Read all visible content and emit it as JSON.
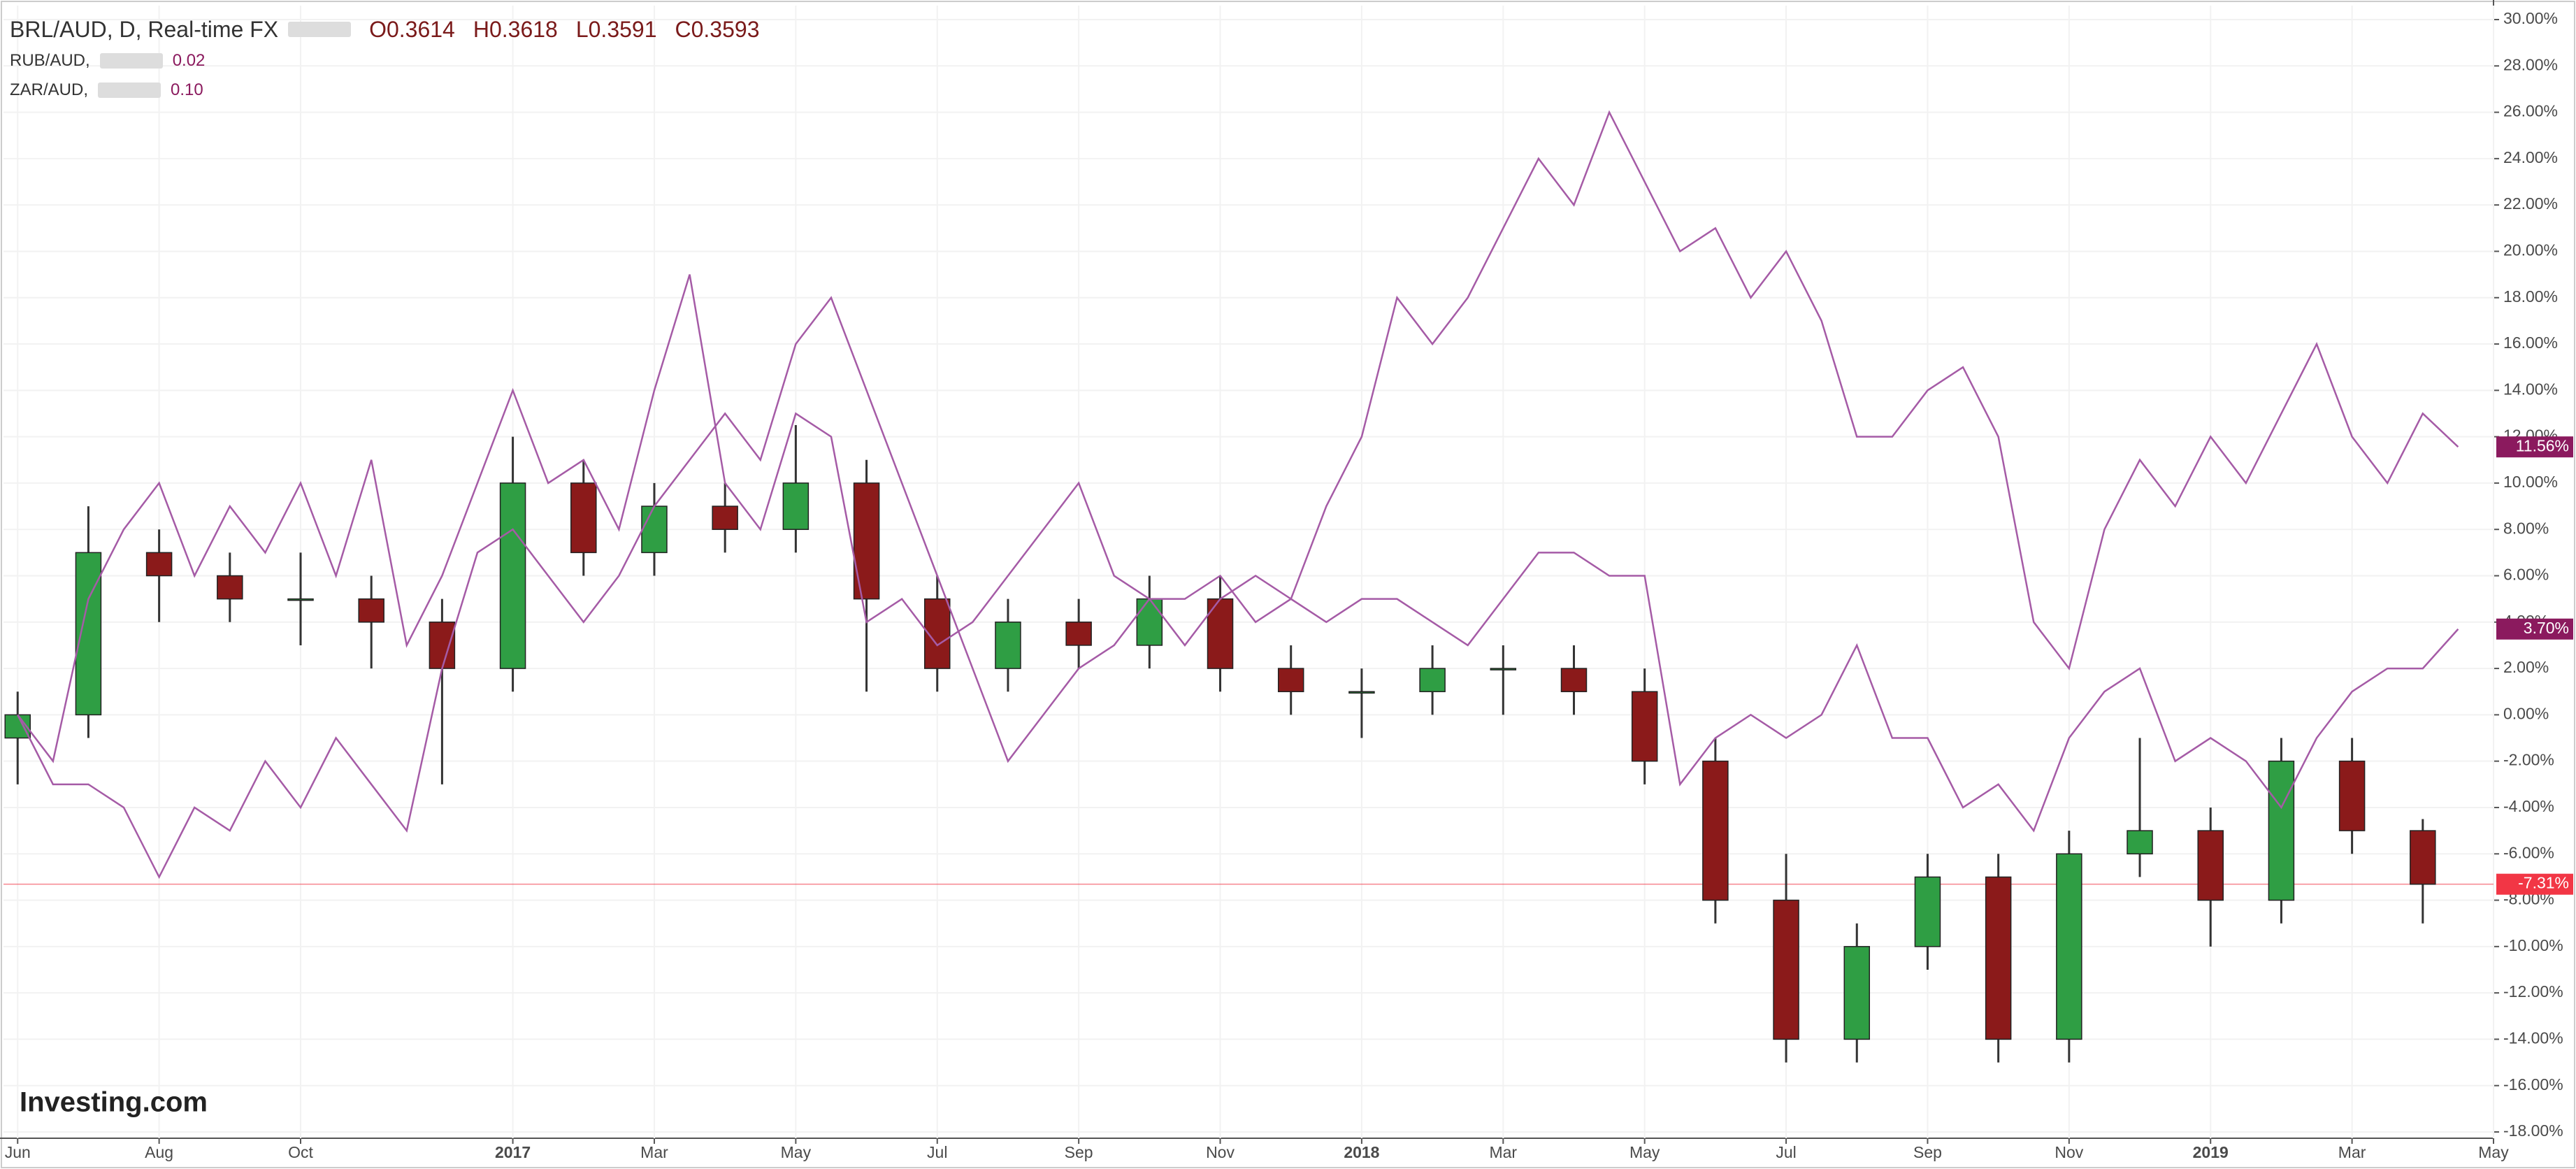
{
  "chart_data": {
    "type": "candlestick",
    "title": "BRL/AUD, D, Real-time FX",
    "ohlc_header": [
      "O0.3614",
      "H0.3618",
      "L0.3591",
      "C0.3593"
    ],
    "logo": "Investing.com",
    "xlim": [
      -0.2,
      35
    ],
    "xticks": [
      {
        "value": 0,
        "label": "Jun"
      },
      {
        "value": 2,
        "label": "Aug"
      },
      {
        "value": 4,
        "label": "Oct"
      },
      {
        "value": 7,
        "label": "2017"
      },
      {
        "value": 9,
        "label": "Mar"
      },
      {
        "value": 11,
        "label": "May"
      },
      {
        "value": 13,
        "label": "Jul"
      },
      {
        "value": 15,
        "label": "Sep"
      },
      {
        "value": 17,
        "label": "Nov"
      },
      {
        "value": 19,
        "label": "2018"
      },
      {
        "value": 21,
        "label": "Mar"
      },
      {
        "value": 23,
        "label": "May"
      },
      {
        "value": 25,
        "label": "Jul"
      },
      {
        "value": 27,
        "label": "Sep"
      },
      {
        "value": 29,
        "label": "Nov"
      },
      {
        "value": 31,
        "label": "2019"
      },
      {
        "value": 33,
        "label": "Mar"
      },
      {
        "value": 35,
        "label": "May"
      }
    ],
    "ylim": [
      -18,
      30
    ],
    "yticks": [
      {
        "value": 30,
        "label": "30.00%"
      },
      {
        "value": 28,
        "label": "28.00%"
      },
      {
        "value": 26,
        "label": "26.00%"
      },
      {
        "value": 24,
        "label": "24.00%"
      },
      {
        "value": 22,
        "label": "22.00%"
      },
      {
        "value": 20,
        "label": "20.00%"
      },
      {
        "value": 18,
        "label": "18.00%"
      },
      {
        "value": 16,
        "label": "16.00%"
      },
      {
        "value": 14,
        "label": "14.00%"
      },
      {
        "value": 12,
        "label": "12.00%"
      },
      {
        "value": 10,
        "label": "10.00%"
      },
      {
        "value": 8,
        "label": "8.00%"
      },
      {
        "value": 6,
        "label": "6.00%"
      },
      {
        "value": 4,
        "label": "4.00%"
      },
      {
        "value": 2,
        "label": "2.00%"
      },
      {
        "value": 0,
        "label": "0.00%"
      },
      {
        "value": -2,
        "label": "-2.00%"
      },
      {
        "value": -4,
        "label": "-4.00%"
      },
      {
        "value": -6,
        "label": "-6.00%"
      },
      {
        "value": -8,
        "label": "-8.00%"
      },
      {
        "value": -10,
        "label": "-10.00%"
      },
      {
        "value": -12,
        "label": "-12.00%"
      },
      {
        "value": -14,
        "label": "-14.00%"
      },
      {
        "value": -16,
        "label": "-16.00%"
      },
      {
        "value": -18,
        "label": "-18.00%"
      }
    ],
    "grid": true,
    "candles": {
      "x": [
        0,
        1,
        2,
        3,
        4,
        5,
        6,
        7,
        8,
        9,
        10,
        11,
        12,
        13,
        14,
        15,
        16,
        17,
        18,
        19,
        20,
        21,
        22,
        23,
        24,
        25,
        26,
        27,
        28,
        29,
        30,
        31,
        32,
        33,
        34
      ],
      "open": [
        -1,
        0,
        7,
        6,
        5,
        5,
        4,
        2,
        10,
        7,
        9,
        8,
        10,
        5,
        2,
        4,
        3,
        5,
        2,
        1,
        1,
        2,
        2,
        1,
        -2,
        -8,
        -14,
        -10,
        -7,
        -14,
        -6,
        -5,
        -8,
        -2,
        -5
      ],
      "high": [
        1,
        9,
        8,
        7,
        7,
        6,
        5,
        12,
        11,
        10,
        10,
        12.5,
        11,
        6,
        5,
        5,
        6,
        6,
        3,
        2,
        3,
        3,
        3,
        2,
        -1,
        -6,
        -9,
        -6,
        -6,
        -5,
        -1,
        -4,
        -1,
        -1,
        -4.5
      ],
      "low": [
        -3,
        -1,
        4,
        4,
        3,
        2,
        -3,
        1,
        6,
        6,
        7,
        7,
        1,
        1,
        1,
        2,
        2,
        1,
        0,
        -1,
        0,
        0,
        0,
        -3,
        -9,
        -15,
        -15,
        -11,
        -15,
        -15,
        -7,
        -10,
        -9,
        -6,
        -9
      ],
      "close": [
        0,
        7,
        6,
        5,
        5,
        4,
        2,
        10,
        7,
        9,
        8,
        10,
        5,
        2,
        4,
        3,
        5,
        2,
        1,
        1,
        2,
        2,
        1,
        -2,
        -8,
        -14,
        -10,
        -7,
        -14,
        -6,
        -5,
        -8,
        -2,
        -5,
        -7.31
      ],
      "up_color": "#2f9e44",
      "down_color": "#8b1a1a",
      "last_label": "-7.31%",
      "last_color": "#f23645"
    },
    "x": [
      0,
      0.5,
      1,
      1.5,
      2,
      2.5,
      3,
      3.5,
      4,
      4.5,
      5,
      5.5,
      6,
      6.5,
      7,
      7.5,
      8,
      8.5,
      9,
      9.5,
      10,
      10.5,
      11,
      11.5,
      12,
      12.5,
      13,
      13.5,
      14,
      14.5,
      15,
      15.5,
      16,
      16.5,
      17,
      17.5,
      18,
      18.5,
      19,
      19.5,
      20,
      20.5,
      21,
      21.5,
      22,
      22.5,
      23,
      23.5,
      24,
      24.5,
      25,
      25.5,
      26,
      26.5,
      27,
      27.5,
      28,
      28.5,
      29,
      29.5,
      30,
      30.5,
      31,
      31.5,
      32,
      32.5,
      33,
      33.5,
      34,
      34.5
    ],
    "series": [
      {
        "name": "RUB/AUD,",
        "legend_value": "0.02",
        "color": "#a55ba6",
        "last_label": "3.70%",
        "values": [
          0,
          -3,
          -3,
          -4,
          -7,
          -4,
          -5,
          -2,
          -4,
          -1,
          -3,
          -5,
          2,
          7,
          8,
          6,
          4,
          6,
          9,
          11,
          13,
          11,
          16,
          18,
          14,
          10,
          6,
          2,
          -2,
          0,
          2,
          3,
          5,
          5,
          6,
          4,
          5,
          4,
          5,
          5,
          4,
          3,
          5,
          7,
          7,
          6,
          6,
          -3,
          -1,
          0,
          -1,
          0,
          3,
          -1,
          -1,
          -4,
          -3,
          -5,
          -1,
          1,
          2,
          -2,
          -1,
          -2,
          -4,
          -1,
          1,
          2,
          2,
          3.7
        ]
      },
      {
        "name": "ZAR/AUD,",
        "legend_value": "0.10",
        "color": "#a55ba6",
        "last_label": "11.56%",
        "values": [
          0,
          -2,
          5,
          8,
          10,
          6,
          9,
          7,
          10,
          6,
          11,
          3,
          6,
          10,
          14,
          10,
          11,
          8,
          14,
          19,
          10,
          8,
          13,
          12,
          4,
          5,
          3,
          4,
          6,
          8,
          10,
          6,
          5,
          3,
          5,
          6,
          5,
          9,
          12,
          18,
          16,
          18,
          21,
          24,
          22,
          26,
          23,
          20,
          21,
          18,
          20,
          17,
          12,
          12,
          14,
          15,
          12,
          4,
          2,
          8,
          11,
          9,
          12,
          10,
          13,
          16,
          12,
          10,
          13,
          11.56
        ]
      }
    ]
  }
}
